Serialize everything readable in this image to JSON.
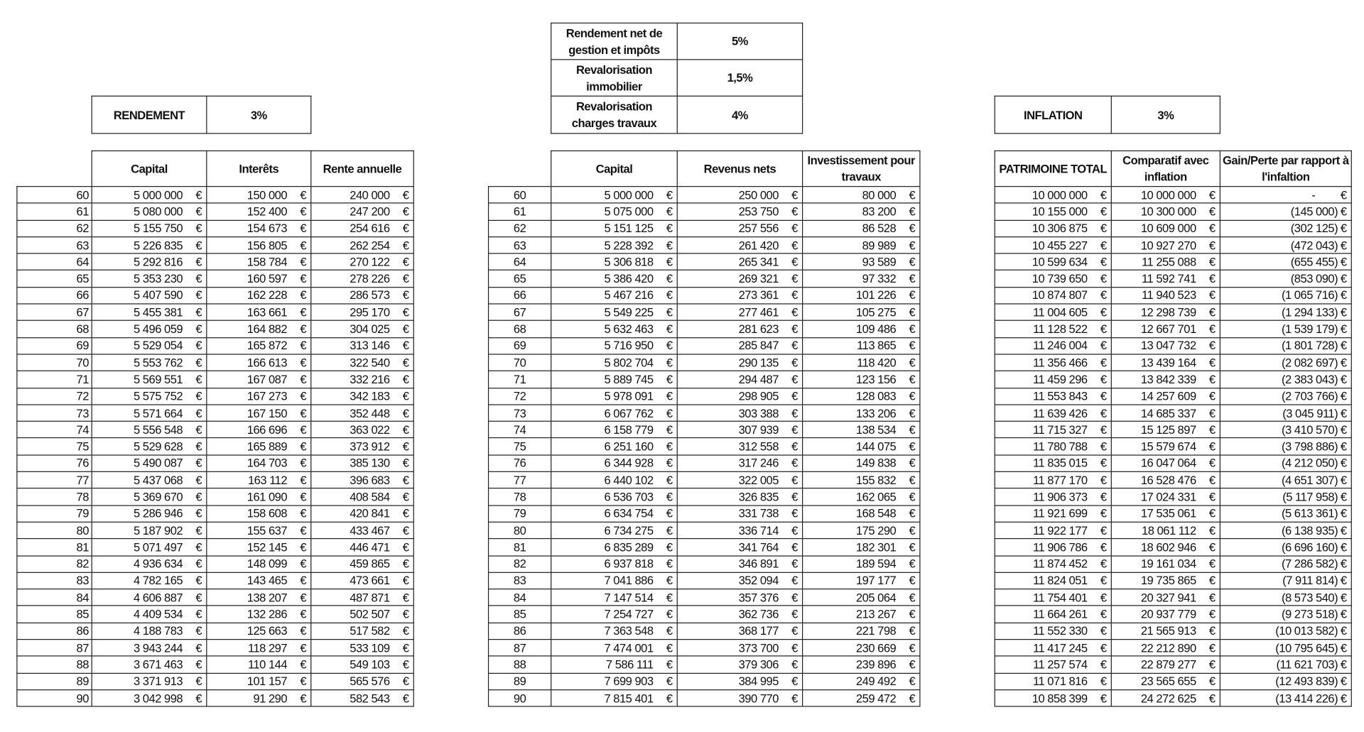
{
  "currency": "€",
  "rendement_box": {
    "label": "RENDEMENT",
    "value": "3%"
  },
  "params_box": [
    {
      "label_1": "Rendement  net de",
      "label_2": "gestion et impôts",
      "value": "5%"
    },
    {
      "label_1": "Revalorisation",
      "label_2": "immobilier",
      "value": "1,5%"
    },
    {
      "label_1": "Revalorisation",
      "label_2": "charges travaux",
      "value": "4%"
    }
  ],
  "inflation_box": {
    "label": "INFLATION",
    "value": "3%"
  },
  "left_table": {
    "headers": [
      "Capital",
      "Interêts",
      "Rente annuelle"
    ],
    "rows": [
      [
        "60",
        "5 000 000",
        "150 000",
        "240 000"
      ],
      [
        "61",
        "5 080 000",
        "152 400",
        "247 200"
      ],
      [
        "62",
        "5 155 750",
        "154 673",
        "254 616"
      ],
      [
        "63",
        "5 226 835",
        "156 805",
        "262 254"
      ],
      [
        "64",
        "5 292 816",
        "158 784",
        "270 122"
      ],
      [
        "65",
        "5 353 230",
        "160 597",
        "278 226"
      ],
      [
        "66",
        "5 407 590",
        "162 228",
        "286 573"
      ],
      [
        "67",
        "5 455 381",
        "163 661",
        "295 170"
      ],
      [
        "68",
        "5 496 059",
        "164 882",
        "304 025"
      ],
      [
        "69",
        "5 529 054",
        "165 872",
        "313 146"
      ],
      [
        "70",
        "5 553 762",
        "166 613",
        "322 540"
      ],
      [
        "71",
        "5 569 551",
        "167 087",
        "332 216"
      ],
      [
        "72",
        "5 575 752",
        "167 273",
        "342 183"
      ],
      [
        "73",
        "5 571 664",
        "167 150",
        "352 448"
      ],
      [
        "74",
        "5 556 548",
        "166 696",
        "363 022"
      ],
      [
        "75",
        "5 529 628",
        "165 889",
        "373 912"
      ],
      [
        "76",
        "5 490 087",
        "164 703",
        "385 130"
      ],
      [
        "77",
        "5 437 068",
        "163 112",
        "396 683"
      ],
      [
        "78",
        "5 369 670",
        "161 090",
        "408 584"
      ],
      [
        "79",
        "5 286 946",
        "158 608",
        "420 841"
      ],
      [
        "80",
        "5 187 902",
        "155 637",
        "433 467"
      ],
      [
        "81",
        "5 071 497",
        "152 145",
        "446 471"
      ],
      [
        "82",
        "4 936 634",
        "148 099",
        "459 865"
      ],
      [
        "83",
        "4 782 165",
        "143 465",
        "473 661"
      ],
      [
        "84",
        "4 606 887",
        "138 207",
        "487 871"
      ],
      [
        "85",
        "4 409 534",
        "132 286",
        "502 507"
      ],
      [
        "86",
        "4 188 783",
        "125 663",
        "517 582"
      ],
      [
        "87",
        "3 943 244",
        "118 297",
        "533 109"
      ],
      [
        "88",
        "3 671 463",
        "110 144",
        "549 103"
      ],
      [
        "89",
        "3 371 913",
        "101 157",
        "565 576"
      ],
      [
        "90",
        "3 042 998",
        "91 290",
        "582 543"
      ]
    ]
  },
  "middle_table": {
    "headers": [
      "Capital",
      "Revenus nets",
      "Investissement pour travaux"
    ],
    "rows": [
      [
        "60",
        "5 000 000",
        "250 000",
        "80 000"
      ],
      [
        "61",
        "5 075 000",
        "253 750",
        "83 200"
      ],
      [
        "62",
        "5 151 125",
        "257 556",
        "86 528"
      ],
      [
        "63",
        "5 228 392",
        "261 420",
        "89 989"
      ],
      [
        "64",
        "5 306 818",
        "265 341",
        "93 589"
      ],
      [
        "65",
        "5 386 420",
        "269 321",
        "97 332"
      ],
      [
        "66",
        "5 467 216",
        "273 361",
        "101 226"
      ],
      [
        "67",
        "5 549 225",
        "277 461",
        "105 275"
      ],
      [
        "68",
        "5 632 463",
        "281 623",
        "109 486"
      ],
      [
        "69",
        "5 716 950",
        "285 847",
        "113 865"
      ],
      [
        "70",
        "5 802 704",
        "290 135",
        "118 420"
      ],
      [
        "71",
        "5 889 745",
        "294 487",
        "123 156"
      ],
      [
        "72",
        "5 978 091",
        "298 905",
        "128 083"
      ],
      [
        "73",
        "6 067 762",
        "303 388",
        "133 206"
      ],
      [
        "74",
        "6 158 779",
        "307 939",
        "138 534"
      ],
      [
        "75",
        "6 251 160",
        "312 558",
        "144 075"
      ],
      [
        "76",
        "6 344 928",
        "317 246",
        "149 838"
      ],
      [
        "77",
        "6 440 102",
        "322 005",
        "155 832"
      ],
      [
        "78",
        "6 536 703",
        "326 835",
        "162 065"
      ],
      [
        "79",
        "6 634 754",
        "331 738",
        "168 548"
      ],
      [
        "80",
        "6 734 275",
        "336 714",
        "175 290"
      ],
      [
        "81",
        "6 835 289",
        "341 764",
        "182 301"
      ],
      [
        "82",
        "6 937 818",
        "346 891",
        "189 594"
      ],
      [
        "83",
        "7 041 886",
        "352 094",
        "197 177"
      ],
      [
        "84",
        "7 147 514",
        "357 376",
        "205 064"
      ],
      [
        "85",
        "7 254 727",
        "362 736",
        "213 267"
      ],
      [
        "86",
        "7 363 548",
        "368 177",
        "221 798"
      ],
      [
        "87",
        "7 474 001",
        "373 700",
        "230 669"
      ],
      [
        "88",
        "7 586 111",
        "379 306",
        "239 896"
      ],
      [
        "89",
        "7 699 903",
        "384 995",
        "249 492"
      ],
      [
        "90",
        "7 815 401",
        "390 770",
        "259 472"
      ]
    ]
  },
  "right_table": {
    "headers": [
      "PATRIMOINE TOTAL",
      "Comparatif avec inflation",
      "Gain/Perte par rapport à l'infaltion"
    ],
    "rows": [
      [
        "10 000 000",
        "10 000 000",
        "-"
      ],
      [
        "10 155 000",
        "10 300 000",
        "(145 000)"
      ],
      [
        "10 306 875",
        "10 609 000",
        "(302 125)"
      ],
      [
        "10 455 227",
        "10 927 270",
        "(472 043)"
      ],
      [
        "10 599 634",
        "11 255 088",
        "(655 455)"
      ],
      [
        "10 739 650",
        "11 592 741",
        "(853 090)"
      ],
      [
        "10 874 807",
        "11 940 523",
        "(1 065 716)"
      ],
      [
        "11 004 605",
        "12 298 739",
        "(1 294 133)"
      ],
      [
        "11 128 522",
        "12 667 701",
        "(1 539 179)"
      ],
      [
        "11 246 004",
        "13 047 732",
        "(1 801 728)"
      ],
      [
        "11 356 466",
        "13 439 164",
        "(2 082 697)"
      ],
      [
        "11 459 296",
        "13 842 339",
        "(2 383 043)"
      ],
      [
        "11 553 843",
        "14 257 609",
        "(2 703 766)"
      ],
      [
        "11 639 426",
        "14 685 337",
        "(3 045 911)"
      ],
      [
        "11 715 327",
        "15 125 897",
        "(3 410 570)"
      ],
      [
        "11 780 788",
        "15 579 674",
        "(3 798 886)"
      ],
      [
        "11 835 015",
        "16 047 064",
        "(4 212 050)"
      ],
      [
        "11 877 170",
        "16 528 476",
        "(4 651 307)"
      ],
      [
        "11 906 373",
        "17 024 331",
        "(5 117 958)"
      ],
      [
        "11 921 699",
        "17 535 061",
        "(5 613 361)"
      ],
      [
        "11 922 177",
        "18 061 112",
        "(6 138 935)"
      ],
      [
        "11 906 786",
        "18 602 946",
        "(6 696 160)"
      ],
      [
        "11 874 452",
        "19 161 034",
        "(7 286 582)"
      ],
      [
        "11 824 051",
        "19 735 865",
        "(7 911 814)"
      ],
      [
        "11 754 401",
        "20 327 941",
        "(8 573 540)"
      ],
      [
        "11 664 261",
        "20 937 779",
        "(9 273 518)"
      ],
      [
        "11 552 330",
        "21 565 913",
        "(10 013 582)"
      ],
      [
        "11 417 245",
        "22 212 890",
        "(10 795 645)"
      ],
      [
        "11 257 574",
        "22 879 277",
        "(11 621 703)"
      ],
      [
        "11 071 816",
        "23 565 655",
        "(12 493 839)"
      ],
      [
        "10 858 399",
        "24 272 625",
        "(13 414 226)"
      ]
    ]
  }
}
